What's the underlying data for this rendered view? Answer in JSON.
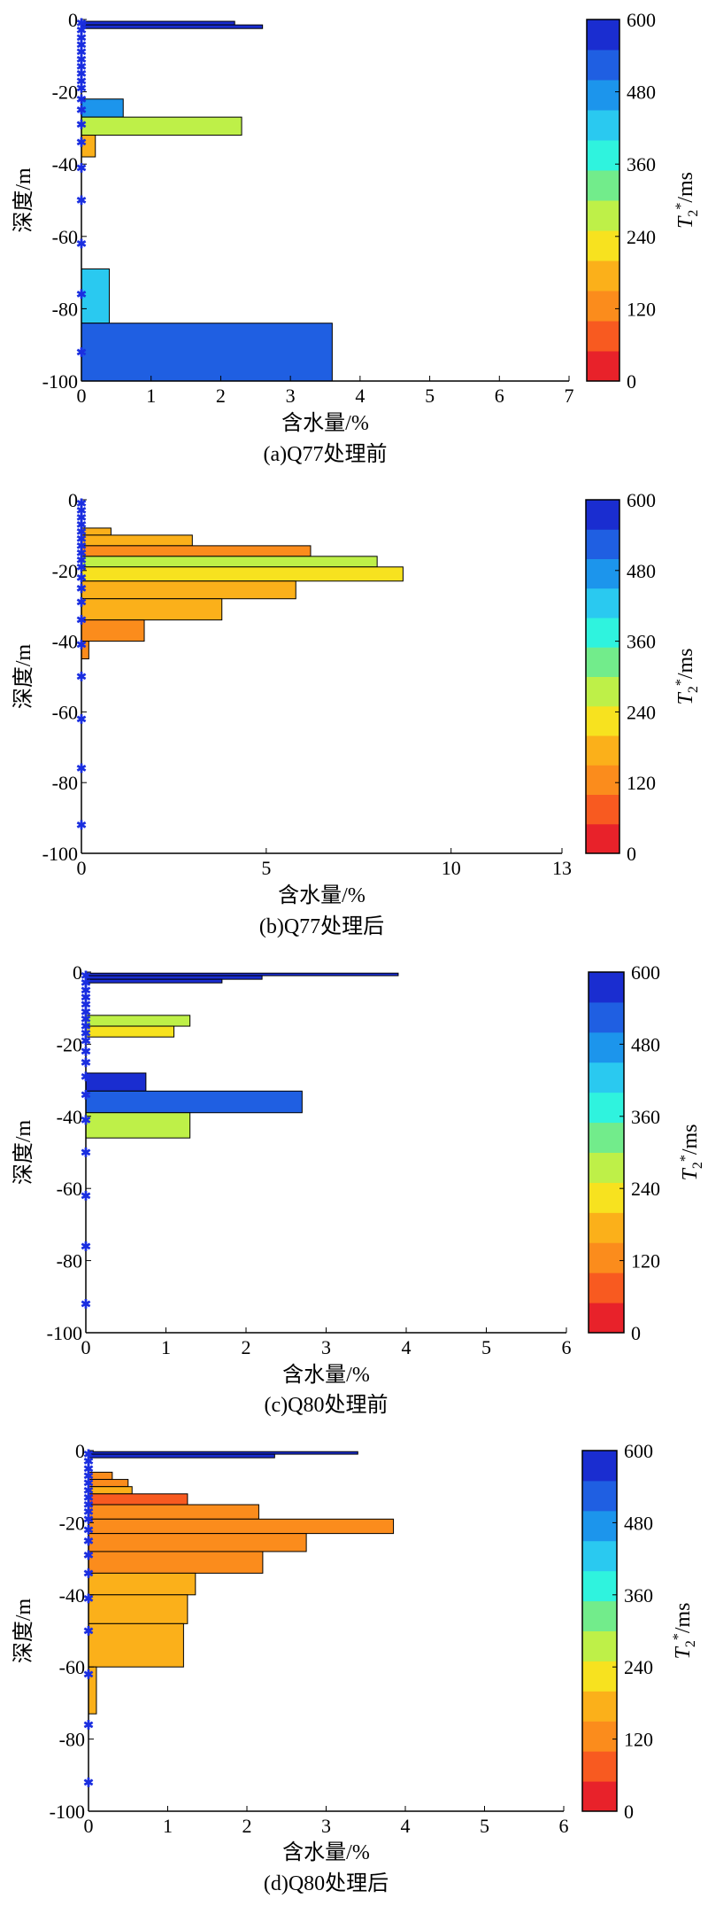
{
  "colorbar": {
    "label": "T2*/ms",
    "ticks": [
      "600",
      "480",
      "360",
      "240",
      "120",
      "0"
    ],
    "colors": [
      "#e8222a",
      "#f85a20",
      "#fb8c1c",
      "#fbb01a",
      "#f7e21f",
      "#bef048",
      "#72ec8b",
      "#2ff3de",
      "#2ac9f0",
      "#1c95ec",
      "#1f5fe2",
      "#1a2dd0"
    ]
  },
  "chart_data": [
    {
      "type": "bar",
      "caption": "(a)Q77处理前",
      "xlabel": "含水量/%",
      "ylabel": "深度/m",
      "xlim": [
        0,
        7
      ],
      "ylim": [
        -100,
        0
      ],
      "xticks": [
        0,
        1,
        2,
        3,
        4,
        5,
        6,
        7
      ],
      "yticks": [
        0,
        -20,
        -40,
        -60,
        -80,
        -100
      ],
      "orientation": "horizontal",
      "bars": [
        {
          "depth_top": -0.5,
          "depth_bottom": -1.5,
          "value": 2.2,
          "t2": 560
        },
        {
          "depth_top": -1.5,
          "depth_bottom": -2.5,
          "value": 2.6,
          "t2": 560
        },
        {
          "depth_top": -22,
          "depth_bottom": -27,
          "value": 0.6,
          "t2": 450
        },
        {
          "depth_top": -27,
          "depth_bottom": -32,
          "value": 2.3,
          "t2": 270
        },
        {
          "depth_top": -32,
          "depth_bottom": -38,
          "value": 0.2,
          "t2": 150
        },
        {
          "depth_top": -69,
          "depth_bottom": -84,
          "value": 0.4,
          "t2": 430
        },
        {
          "depth_top": -84,
          "depth_bottom": -100,
          "value": 3.6,
          "t2": 530
        }
      ],
      "markers": [
        -1,
        -3,
        -5,
        -7,
        -9,
        -11,
        -13,
        -15,
        -17,
        -19,
        -22,
        -25,
        -29,
        -34,
        -41,
        -50,
        -62,
        -76,
        -92
      ]
    },
    {
      "type": "bar",
      "caption": "(b)Q77处理后",
      "xlabel": "含水量/%",
      "ylabel": "深度/m",
      "xlim": [
        0,
        13
      ],
      "ylim": [
        -100,
        0
      ],
      "xticks": [
        0,
        5,
        10,
        13
      ],
      "yticks": [
        0,
        -20,
        -40,
        -60,
        -80,
        -100
      ],
      "orientation": "horizontal",
      "bars": [
        {
          "depth_top": -8,
          "depth_bottom": -10,
          "value": 0.8,
          "t2": 150
        },
        {
          "depth_top": -10,
          "depth_bottom": -13,
          "value": 3.0,
          "t2": 150
        },
        {
          "depth_top": -13,
          "depth_bottom": -16,
          "value": 6.2,
          "t2": 130
        },
        {
          "depth_top": -16,
          "depth_bottom": -19,
          "value": 8.0,
          "t2": 260
        },
        {
          "depth_top": -19,
          "depth_bottom": -23,
          "value": 8.7,
          "t2": 220
        },
        {
          "depth_top": -23,
          "depth_bottom": -28,
          "value": 5.8,
          "t2": 160
        },
        {
          "depth_top": -28,
          "depth_bottom": -34,
          "value": 3.8,
          "t2": 150
        },
        {
          "depth_top": -34,
          "depth_bottom": -40,
          "value": 1.7,
          "t2": 100
        },
        {
          "depth_top": -40,
          "depth_bottom": -45,
          "value": 0.2,
          "t2": 120
        }
      ],
      "markers": [
        -1,
        -3,
        -5,
        -7,
        -9,
        -11,
        -13,
        -15,
        -17,
        -19,
        -22,
        -25,
        -29,
        -34,
        -41,
        -50,
        -62,
        -76,
        -92
      ]
    },
    {
      "type": "bar",
      "caption": "(c)Q80处理前",
      "xlabel": "含水量/%",
      "ylabel": "深度/m",
      "xlim": [
        0,
        6
      ],
      "ylim": [
        -100,
        0
      ],
      "xticks": [
        0,
        1,
        2,
        3,
        4,
        5,
        6
      ],
      "yticks": [
        0,
        -20,
        -40,
        -60,
        -80,
        -100
      ],
      "orientation": "horizontal",
      "bars": [
        {
          "depth_top": -0.3,
          "depth_bottom": -1.0,
          "value": 3.9,
          "t2": 590
        },
        {
          "depth_top": -1.0,
          "depth_bottom": -2.0,
          "value": 2.2,
          "t2": 580
        },
        {
          "depth_top": -2.0,
          "depth_bottom": -3.0,
          "value": 1.7,
          "t2": 580
        },
        {
          "depth_top": -12,
          "depth_bottom": -15,
          "value": 1.3,
          "t2": 290
        },
        {
          "depth_top": -15,
          "depth_bottom": -18,
          "value": 1.1,
          "t2": 230
        },
        {
          "depth_top": -28,
          "depth_bottom": -33,
          "value": 0.75,
          "t2": 590
        },
        {
          "depth_top": -33,
          "depth_bottom": -39,
          "value": 2.7,
          "t2": 540
        },
        {
          "depth_top": -39,
          "depth_bottom": -46,
          "value": 1.3,
          "t2": 280
        }
      ],
      "markers": [
        -1,
        -3,
        -5,
        -7,
        -9,
        -11,
        -13,
        -15,
        -17,
        -19,
        -22,
        -25,
        -29,
        -34,
        -41,
        -50,
        -62,
        -76,
        -92
      ]
    },
    {
      "type": "bar",
      "caption": "(d)Q80处理后",
      "xlabel": "含水量/%",
      "ylabel": "深度/m",
      "xlim": [
        0,
        6
      ],
      "ylim": [
        -100,
        0
      ],
      "xticks": [
        0,
        1,
        2,
        3,
        4,
        5,
        6
      ],
      "yticks": [
        0,
        -20,
        -40,
        -60,
        -80,
        -100
      ],
      "orientation": "horizontal",
      "bars": [
        {
          "depth_top": -0.3,
          "depth_bottom": -1.0,
          "value": 3.4,
          "t2": 590
        },
        {
          "depth_top": -1.0,
          "depth_bottom": -2.0,
          "value": 2.35,
          "t2": 580
        },
        {
          "depth_top": -6,
          "depth_bottom": -8,
          "value": 0.3,
          "t2": 140
        },
        {
          "depth_top": -8,
          "depth_bottom": -10,
          "value": 0.5,
          "t2": 140
        },
        {
          "depth_top": -10,
          "depth_bottom": -12,
          "value": 0.55,
          "t2": 150
        },
        {
          "depth_top": -12,
          "depth_bottom": -15,
          "value": 1.25,
          "t2": 50
        },
        {
          "depth_top": -15,
          "depth_bottom": -19,
          "value": 2.15,
          "t2": 120
        },
        {
          "depth_top": -19,
          "depth_bottom": -23,
          "value": 3.85,
          "t2": 130
        },
        {
          "depth_top": -23,
          "depth_bottom": -28,
          "value": 2.75,
          "t2": 130
        },
        {
          "depth_top": -28,
          "depth_bottom": -34,
          "value": 2.2,
          "t2": 130
        },
        {
          "depth_top": -34,
          "depth_bottom": -40,
          "value": 1.35,
          "t2": 160
        },
        {
          "depth_top": -40,
          "depth_bottom": -48,
          "value": 1.25,
          "t2": 170
        },
        {
          "depth_top": -48,
          "depth_bottom": -60,
          "value": 1.2,
          "t2": 190
        },
        {
          "depth_top": -60,
          "depth_bottom": -73,
          "value": 0.1,
          "t2": 160
        }
      ],
      "markers": [
        -1,
        -3,
        -5,
        -7,
        -9,
        -11,
        -13,
        -15,
        -17,
        -19,
        -22,
        -25,
        -29,
        -34,
        -41,
        -50,
        -62,
        -76,
        -92
      ]
    }
  ]
}
